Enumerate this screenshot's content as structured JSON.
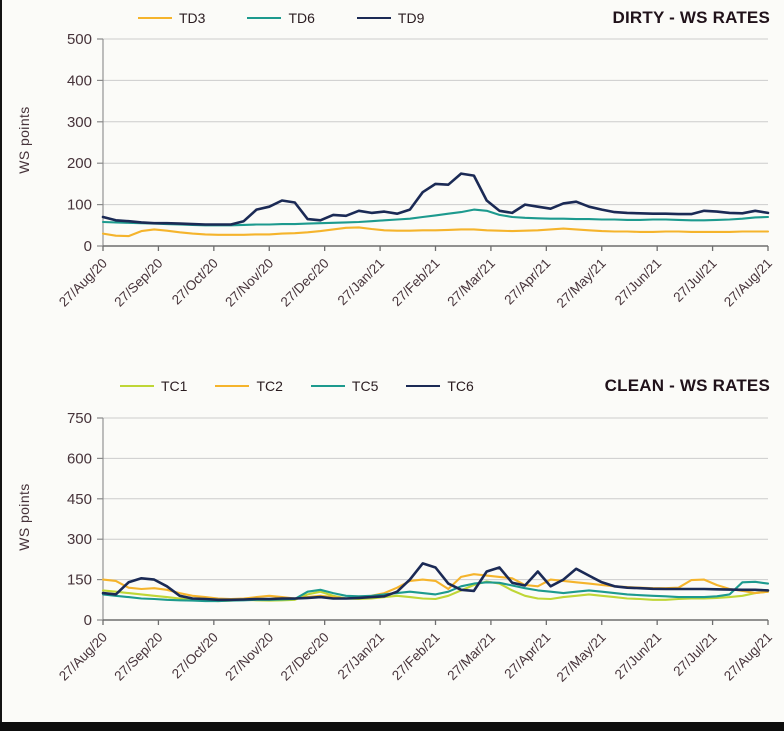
{
  "page": {
    "background": "#fbfbf8",
    "edge_color": "#141414",
    "text_color": "#46333a",
    "title_color": "#20121a",
    "grid_color": "#cccccc",
    "axis_color": "#6e6e6e"
  },
  "chart_data": [
    {
      "id": "dirty",
      "type": "line",
      "title": "DIRTY - WS RATES",
      "ylabel": "WS points",
      "ylim": [
        0,
        500
      ],
      "y_ticks": [
        0,
        100,
        200,
        300,
        400,
        500
      ],
      "grid": true,
      "legend_position": "top-center",
      "x_unit": "weekly",
      "x_tick_labels": [
        "27/Aug/20",
        "27/Sep/20",
        "27/Oct/20",
        "27/Nov/20",
        "27/Dec/20",
        "27/Jan/21",
        "27/Feb/21",
        "27/Mar/21",
        "27/Apr/21",
        "27/May/21",
        "27/Jun/21",
        "27/Jul/21",
        "27/Aug/21"
      ],
      "series": [
        {
          "name": "TD3",
          "color": "#f5b42c",
          "values": [
            30,
            25,
            24,
            36,
            40,
            37,
            33,
            30,
            28,
            27,
            27,
            27,
            28,
            28,
            30,
            31,
            33,
            36,
            40,
            44,
            45,
            41,
            38,
            37,
            37,
            38,
            38,
            39,
            40,
            40,
            38,
            37,
            36,
            37,
            38,
            40,
            42,
            40,
            38,
            36,
            35,
            35,
            34,
            34,
            35,
            35,
            34,
            34,
            34,
            34,
            35,
            35,
            35
          ]
        },
        {
          "name": "TD6",
          "color": "#1d9a8e",
          "values": [
            58,
            57,
            56,
            55,
            54,
            53,
            52,
            51,
            50,
            50,
            50,
            51,
            52,
            52,
            53,
            53,
            54,
            55,
            56,
            57,
            58,
            60,
            62,
            64,
            66,
            70,
            74,
            78,
            82,
            88,
            85,
            75,
            70,
            68,
            67,
            66,
            66,
            65,
            65,
            64,
            64,
            63,
            63,
            64,
            64,
            63,
            62,
            62,
            63,
            64,
            66,
            69,
            70
          ]
        },
        {
          "name": "TD9",
          "color": "#1b2a55",
          "values": [
            70,
            62,
            60,
            57,
            55,
            55,
            54,
            53,
            52,
            52,
            52,
            60,
            88,
            95,
            110,
            105,
            65,
            62,
            75,
            73,
            85,
            80,
            83,
            78,
            88,
            130,
            150,
            148,
            175,
            170,
            110,
            85,
            80,
            100,
            95,
            90,
            103,
            107,
            95,
            88,
            82,
            80,
            79,
            78,
            78,
            77,
            77,
            85,
            83,
            80,
            79,
            85,
            80
          ]
        }
      ]
    },
    {
      "id": "clean",
      "type": "line",
      "title": "CLEAN - WS RATES",
      "ylabel": "WS points",
      "ylim": [
        0,
        750
      ],
      "y_ticks": [
        0,
        150,
        300,
        450,
        600,
        750
      ],
      "grid": true,
      "legend_position": "top-center",
      "x_unit": "weekly",
      "x_tick_labels": [
        "27/Aug/20",
        "27/Sep/20",
        "27/Oct/20",
        "27/Nov/20",
        "27/Dec/20",
        "27/Jan/21",
        "27/Feb/21",
        "27/Mar/21",
        "27/Apr/21",
        "27/May/21",
        "27/Jun/21",
        "27/Jul/21",
        "27/Aug/21"
      ],
      "series": [
        {
          "name": "TC1",
          "color": "#bfd636",
          "values": [
            110,
            105,
            100,
            95,
            90,
            85,
            80,
            75,
            72,
            70,
            72,
            75,
            73,
            72,
            73,
            75,
            95,
            105,
            90,
            80,
            78,
            80,
            85,
            90,
            85,
            80,
            78,
            90,
            110,
            130,
            143,
            135,
            110,
            90,
            80,
            78,
            85,
            90,
            95,
            90,
            85,
            80,
            78,
            75,
            75,
            78,
            80,
            80,
            82,
            85,
            90,
            100,
            105
          ]
        },
        {
          "name": "TC2",
          "color": "#f5b42c",
          "values": [
            150,
            145,
            120,
            115,
            118,
            112,
            100,
            90,
            85,
            80,
            78,
            80,
            85,
            90,
            85,
            80,
            85,
            90,
            85,
            80,
            85,
            90,
            100,
            120,
            145,
            150,
            145,
            115,
            160,
            170,
            165,
            160,
            155,
            130,
            125,
            150,
            145,
            140,
            135,
            130,
            125,
            122,
            120,
            118,
            118,
            120,
            148,
            150,
            130,
            115,
            108,
            100,
            105
          ]
        },
        {
          "name": "TC5",
          "color": "#1d9a8e",
          "values": [
            95,
            90,
            85,
            80,
            78,
            75,
            73,
            72,
            70,
            70,
            72,
            73,
            75,
            75,
            76,
            78,
            105,
            112,
            100,
            90,
            88,
            90,
            95,
            100,
            105,
            100,
            95,
            105,
            125,
            135,
            140,
            138,
            128,
            118,
            110,
            105,
            100,
            105,
            110,
            105,
            100,
            95,
            92,
            90,
            88,
            85,
            85,
            85,
            88,
            95,
            140,
            142,
            135
          ]
        },
        {
          "name": "TC6",
          "color": "#1b2a55",
          "values": [
            100,
            95,
            140,
            155,
            150,
            125,
            90,
            80,
            78,
            75,
            75,
            76,
            78,
            78,
            80,
            80,
            82,
            85,
            80,
            80,
            82,
            85,
            88,
            105,
            150,
            210,
            195,
            135,
            112,
            108,
            180,
            195,
            138,
            128,
            180,
            125,
            150,
            190,
            165,
            140,
            125,
            120,
            118,
            116,
            115,
            115,
            115,
            115,
            114,
            113,
            112,
            112,
            110
          ]
        }
      ]
    }
  ]
}
